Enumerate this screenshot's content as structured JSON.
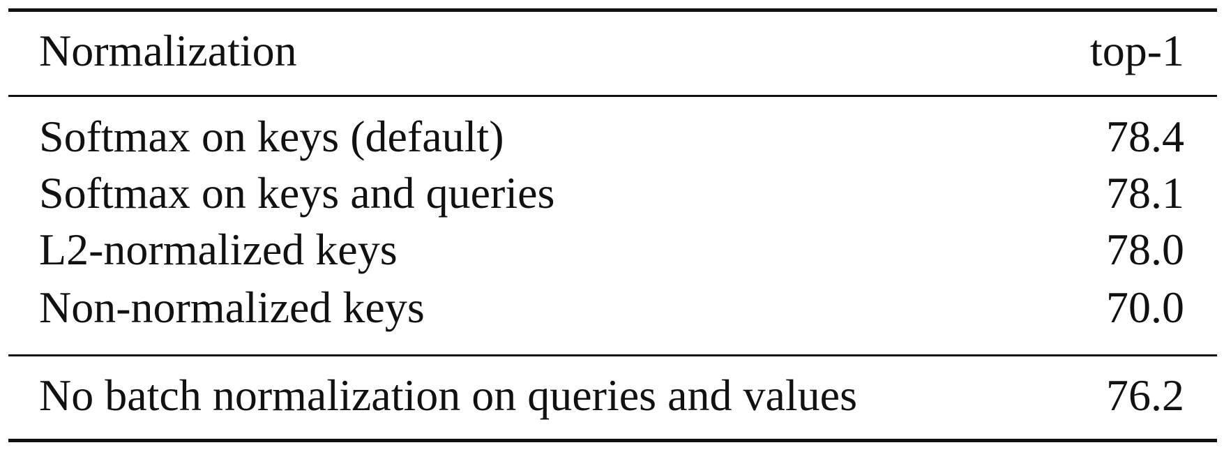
{
  "table": {
    "header": {
      "label": "Normalization",
      "value": "top-1"
    },
    "rows": [
      {
        "label": "Softmax on keys (default)",
        "value": "78.4"
      },
      {
        "label": "Softmax on keys and queries",
        "value": "78.1"
      },
      {
        "label": "L2-normalized keys",
        "value": "78.0"
      },
      {
        "label": "Non-normalized keys",
        "value": "70.0"
      }
    ],
    "extra_rows": [
      {
        "label": "No batch normalization on queries and values",
        "value": "76.2"
      }
    ]
  }
}
